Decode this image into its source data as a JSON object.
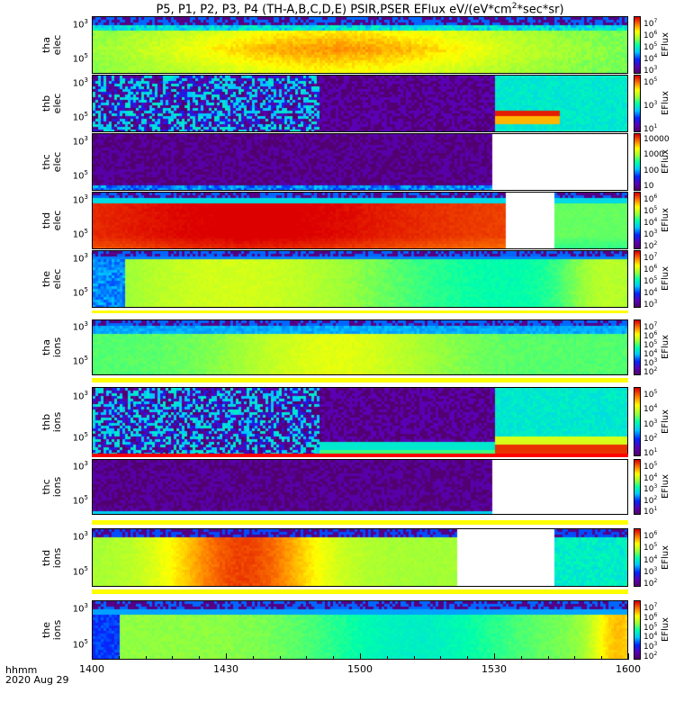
{
  "title": "P5, P1, P2, P3, P4 (TH-A,B,C,D,E) PSIR,PSER EFlux eV/(eV*cm",
  "title_sup": "2",
  "title_tail": "*sec*sr)",
  "x_axis_label": "hhmm",
  "date_label": "2020 Aug 29",
  "chart_data": {
    "type": "heatmap",
    "x_ticks": [
      "1400",
      "1430",
      "1500",
      "1530",
      "1600"
    ],
    "x_range": [
      1400,
      1600
    ],
    "colorbar_label": "EFlux",
    "panels": [
      {
        "id": "tha_elec",
        "label_top": "tha",
        "label_bottom": "elec",
        "yticks": [
          {
            "base": "10",
            "exp": "5"
          },
          {
            "base": "10",
            "exp": "3"
          }
        ],
        "cbticks": [
          {
            "base": "10",
            "exp": "7"
          },
          {
            "base": "10",
            "exp": "6"
          },
          {
            "base": "10",
            "exp": "5"
          },
          {
            "base": "10",
            "exp": "4"
          },
          {
            "base": "10",
            "exp": "3"
          }
        ],
        "cbtext": []
      },
      {
        "id": "thb_elec",
        "label_top": "thb",
        "label_bottom": "elec",
        "yticks": [
          {
            "base": "10",
            "exp": "5"
          },
          {
            "base": "10",
            "exp": "3"
          }
        ],
        "cbticks": [
          {
            "base": "10",
            "exp": "5"
          },
          {
            "base": "10",
            "exp": "3"
          },
          {
            "base": "10",
            "exp": "1"
          }
        ],
        "cbtext": []
      },
      {
        "id": "thc_elec",
        "label_top": "thc",
        "label_bottom": "elec",
        "yticks": [
          {
            "base": "10",
            "exp": "5"
          },
          {
            "base": "10",
            "exp": "3"
          }
        ],
        "cbticks": [],
        "cbtext": [
          "10000",
          "1000",
          "100",
          "10"
        ]
      },
      {
        "id": "thd_elec",
        "label_top": "thd",
        "label_bottom": "elec",
        "yticks": [
          {
            "base": "10",
            "exp": "5"
          },
          {
            "base": "10",
            "exp": "3"
          }
        ],
        "cbticks": [
          {
            "base": "10",
            "exp": "6"
          },
          {
            "base": "10",
            "exp": "5"
          },
          {
            "base": "10",
            "exp": "4"
          },
          {
            "base": "10",
            "exp": "3"
          },
          {
            "base": "10",
            "exp": "2"
          }
        ],
        "cbtext": []
      },
      {
        "id": "the_elec",
        "label_top": "the",
        "label_bottom": "elec",
        "yticks": [
          {
            "base": "10",
            "exp": "5"
          },
          {
            "base": "10",
            "exp": "3"
          }
        ],
        "cbticks": [
          {
            "base": "10",
            "exp": "7"
          },
          {
            "base": "10",
            "exp": "6"
          },
          {
            "base": "10",
            "exp": "5"
          },
          {
            "base": "10",
            "exp": "4"
          },
          {
            "base": "10",
            "exp": "3"
          }
        ],
        "cbtext": []
      },
      {
        "id": "tha_ions",
        "label_top": "tha",
        "label_bottom": "ions",
        "yticks": [
          {
            "base": "10",
            "exp": "5"
          },
          {
            "base": "10",
            "exp": "3"
          }
        ],
        "cbticks": [
          {
            "base": "10",
            "exp": "7"
          },
          {
            "base": "10",
            "exp": "6"
          },
          {
            "base": "10",
            "exp": "5"
          },
          {
            "base": "10",
            "exp": "4"
          },
          {
            "base": "10",
            "exp": "3"
          },
          {
            "base": "10",
            "exp": "2"
          }
        ],
        "cbtext": []
      },
      {
        "id": "thb_ions",
        "label_top": "thb",
        "label_bottom": "ions",
        "yticks": [
          {
            "base": "10",
            "exp": "5"
          },
          {
            "base": "10",
            "exp": "3"
          }
        ],
        "cbticks": [
          {
            "base": "10",
            "exp": "5"
          },
          {
            "base": "10",
            "exp": "4"
          },
          {
            "base": "10",
            "exp": "3"
          },
          {
            "base": "10",
            "exp": "2"
          },
          {
            "base": "10",
            "exp": "1"
          }
        ],
        "cbtext": []
      },
      {
        "id": "thc_ions",
        "label_top": "thc",
        "label_bottom": "ions",
        "yticks": [
          {
            "base": "10",
            "exp": "5"
          },
          {
            "base": "10",
            "exp": "3"
          }
        ],
        "cbticks": [
          {
            "base": "10",
            "exp": "5"
          },
          {
            "base": "10",
            "exp": "4"
          },
          {
            "base": "10",
            "exp": "3"
          },
          {
            "base": "10",
            "exp": "2"
          },
          {
            "base": "10",
            "exp": "1"
          }
        ],
        "cbtext": []
      },
      {
        "id": "thd_ions",
        "label_top": "thd",
        "label_bottom": "ions",
        "yticks": [
          {
            "base": "10",
            "exp": "5"
          },
          {
            "base": "10",
            "exp": "3"
          }
        ],
        "cbticks": [
          {
            "base": "10",
            "exp": "6"
          },
          {
            "base": "10",
            "exp": "5"
          },
          {
            "base": "10",
            "exp": "4"
          },
          {
            "base": "10",
            "exp": "3"
          },
          {
            "base": "10",
            "exp": "2"
          }
        ],
        "cbtext": []
      },
      {
        "id": "the_ions",
        "label_top": "the",
        "label_bottom": "ions",
        "yticks": [
          {
            "base": "10",
            "exp": "5"
          },
          {
            "base": "10",
            "exp": "3"
          }
        ],
        "cbticks": [
          {
            "base": "10",
            "exp": "7"
          },
          {
            "base": "10",
            "exp": "6"
          },
          {
            "base": "10",
            "exp": "5"
          },
          {
            "base": "10",
            "exp": "4"
          },
          {
            "base": "10",
            "exp": "3"
          },
          {
            "base": "10",
            "exp": "2"
          }
        ],
        "cbtext": []
      }
    ]
  }
}
